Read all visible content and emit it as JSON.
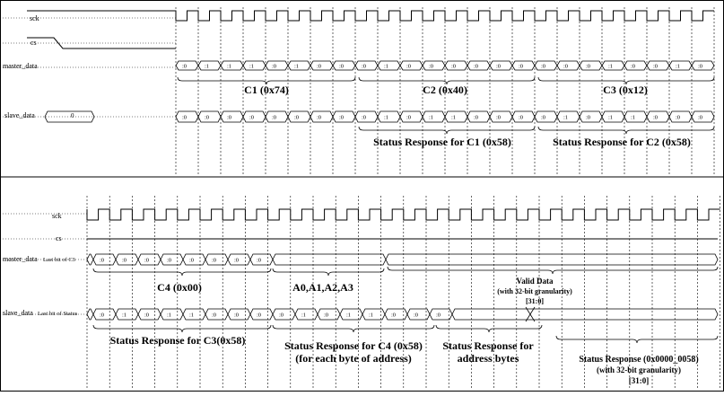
{
  "panel_top": {
    "signals": {
      "sck": "sck",
      "cs": "cs",
      "master_data": "master_data",
      "slave_data": "slave_data"
    },
    "slave_initial_value": "0",
    "master_bits": [
      "0",
      "1",
      "1",
      "1",
      "0",
      "1",
      "0",
      "0",
      "0",
      "1",
      "0",
      "0",
      "0",
      "0",
      "0",
      "0",
      "0",
      "0",
      "0",
      "1",
      "0",
      "0",
      "1",
      "0"
    ],
    "slave_bits": [
      "0",
      "0",
      "0",
      "0",
      "0",
      "0",
      "0",
      "0",
      "0",
      "1",
      "0",
      "1",
      "1",
      "0",
      "0",
      "0",
      "0",
      "1",
      "0",
      "1",
      "1",
      "0",
      "0",
      "0"
    ],
    "labels": {
      "c1": "C1 (0x74)",
      "c2": "C2 (0x40)",
      "c3": "C3 (0x12)",
      "status_c1": "Status Response for C1 (0x58)",
      "status_c2": "Status Response for C2 (0x58)"
    }
  },
  "panel_bottom": {
    "signals": {
      "sck": "sck",
      "cs": "cs",
      "master_data": "master_data",
      "slave_data": "slave_data"
    },
    "master_note": "Last bit of C3",
    "slave_note": "Last bit of Status",
    "master_bits": [
      "0",
      "0",
      "0",
      "0",
      "0",
      "0",
      "0",
      "0"
    ],
    "slave_bits": [
      "0",
      "1",
      "0",
      "1",
      "1",
      "0",
      "0",
      "0",
      "0",
      "1",
      "0",
      "1",
      "1",
      "0",
      "0",
      "0"
    ],
    "labels": {
      "c4": "C4 (0x00)",
      "address": "A0,A1,A2,A3",
      "valid_data": [
        "Valid Data",
        "(with 32-bit granularity)",
        "[31:0]"
      ],
      "status_c3": "Status Response for C3(0x58)",
      "status_c4": [
        "Status Response for C4 (0x58)",
        "(for each byte of address)"
      ],
      "status_addr": [
        "Status Response for",
        "address bytes"
      ],
      "status_final": [
        "Status Response (0x0000_0058)",
        "(with 32-bit granularity)",
        "[31:0]"
      ]
    }
  }
}
